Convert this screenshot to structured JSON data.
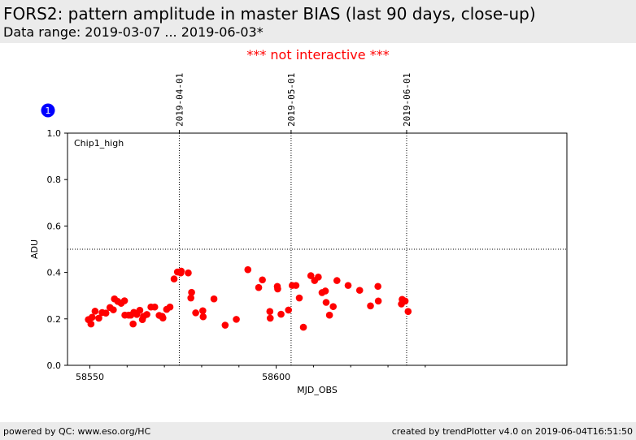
{
  "header": {
    "title": "FORS2: pattern amplitude in master BIAS (last 90 days, close-up)",
    "subtitle": "Data range: 2019-03-07 ... 2019-06-03*",
    "notice": "*** not interactive ***"
  },
  "footer": {
    "left": "powered by QC: www.eso.org/HC",
    "right": "created by trendPlotter v4.0 on 2019-06-04T16:51:50"
  },
  "colors": {
    "header_band": "#ebebeb",
    "notice": "#ff0000",
    "points": "#ff0000",
    "panel_badge": "#0000ff"
  },
  "chart_data": {
    "type": "scatter",
    "panel_number": "1",
    "annotation": "Chip1_high",
    "xlabel": "MJD_OBS",
    "ylabel": "ADU",
    "xlim": [
      58544,
      58678
    ],
    "ylim": [
      0.0,
      1.0
    ],
    "x_ticks": [
      58550,
      58600
    ],
    "x_minor_ticks": [
      58560,
      58570,
      58580,
      58590,
      58610,
      58620,
      58630,
      58640
    ],
    "y_ticks": [
      0.0,
      0.2,
      0.4,
      0.6,
      0.8,
      1.0
    ],
    "y_tick_labels": [
      "0.0",
      "0.2",
      "0.4",
      "0.6",
      "0.8",
      "1.0"
    ],
    "reference_line_y": 0.5,
    "date_markers": [
      {
        "x": 58574,
        "label": "2019-04-01"
      },
      {
        "x": 58604,
        "label": "2019-05-01"
      },
      {
        "x": 58635,
        "label": "2019-06-01"
      }
    ],
    "series": [
      {
        "color": "#ff0000",
        "points": [
          [
            58549.6,
            0.197
          ],
          [
            58550.3,
            0.178
          ],
          [
            58550.6,
            0.207
          ],
          [
            58551.4,
            0.233
          ],
          [
            58552.4,
            0.203
          ],
          [
            58553.3,
            0.227
          ],
          [
            58554.3,
            0.225
          ],
          [
            58555.4,
            0.249
          ],
          [
            58556.3,
            0.239
          ],
          [
            58556.6,
            0.286
          ],
          [
            58557.5,
            0.275
          ],
          [
            58558.4,
            0.267
          ],
          [
            58559.3,
            0.278
          ],
          [
            58559.4,
            0.216
          ],
          [
            58560.4,
            0.216
          ],
          [
            58561.0,
            0.216
          ],
          [
            58561.6,
            0.178
          ],
          [
            58561.8,
            0.228
          ],
          [
            58562.6,
            0.219
          ],
          [
            58563.4,
            0.237
          ],
          [
            58564.1,
            0.197
          ],
          [
            58564.4,
            0.211
          ],
          [
            58565.3,
            0.219
          ],
          [
            58566.4,
            0.251
          ],
          [
            58567.4,
            0.251
          ],
          [
            58568.6,
            0.215
          ],
          [
            58569.4,
            0.211
          ],
          [
            58569.6,
            0.204
          ],
          [
            58570.6,
            0.241
          ],
          [
            58571.5,
            0.251
          ],
          [
            58572.6,
            0.372
          ],
          [
            58573.5,
            0.402
          ],
          [
            58574.4,
            0.398
          ],
          [
            58574.5,
            0.406
          ],
          [
            58576.4,
            0.398
          ],
          [
            58577.1,
            0.29
          ],
          [
            58577.3,
            0.314
          ],
          [
            58578.4,
            0.226
          ],
          [
            58580.3,
            0.235
          ],
          [
            58580.4,
            0.209
          ],
          [
            58583.3,
            0.286
          ],
          [
            58586.3,
            0.173
          ],
          [
            58589.3,
            0.198
          ],
          [
            58592.4,
            0.412
          ],
          [
            58595.3,
            0.335
          ],
          [
            58596.3,
            0.368
          ],
          [
            58598.3,
            0.232
          ],
          [
            58598.4,
            0.203
          ],
          [
            58600.3,
            0.34
          ],
          [
            58600.4,
            0.329
          ],
          [
            58601.3,
            0.22
          ],
          [
            58603.3,
            0.238
          ],
          [
            58604.3,
            0.344
          ],
          [
            58605.3,
            0.344
          ],
          [
            58606.2,
            0.29
          ],
          [
            58607.3,
            0.164
          ],
          [
            58609.3,
            0.386
          ],
          [
            58610.3,
            0.365
          ],
          [
            58611.3,
            0.38
          ],
          [
            58612.3,
            0.313
          ],
          [
            58613.2,
            0.32
          ],
          [
            58613.4,
            0.271
          ],
          [
            58614.3,
            0.216
          ],
          [
            58615.3,
            0.253
          ],
          [
            58616.3,
            0.365
          ],
          [
            58619.3,
            0.344
          ],
          [
            58622.4,
            0.323
          ],
          [
            58625.3,
            0.256
          ],
          [
            58627.3,
            0.34
          ],
          [
            58627.4,
            0.277
          ],
          [
            58633.6,
            0.264
          ],
          [
            58633.8,
            0.284
          ],
          [
            58634.6,
            0.277
          ],
          [
            58635.4,
            0.232
          ]
        ]
      }
    ]
  }
}
